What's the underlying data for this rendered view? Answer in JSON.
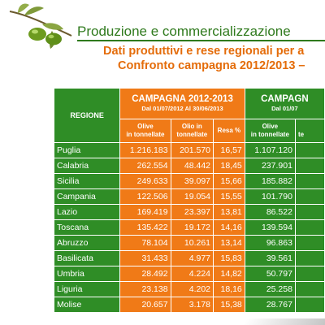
{
  "slide": {
    "title": "Produzione e commercializzazione",
    "subtitle_line1": "Dati produttivi e rese regionali per a",
    "subtitle_line2": "Confronto campagna 2012/2013 –"
  },
  "table": {
    "region_header": "REGIONE",
    "campaign1": {
      "title": "CAMPAGNA 2012-2013",
      "dates": "Dal 01/07/2012 Al 30/06/2013"
    },
    "campaign2": {
      "title": "CAMPAGN",
      "dates": "Dal 01/07"
    },
    "col_headers": {
      "olive_1": "Olive",
      "olive_2": "in tonnellate",
      "olio_1": "Olio in",
      "olio_2": "tonnellate",
      "resa": "Resa %",
      "olive2_1": "Olive",
      "olive2_2": "in tonnellate",
      "olio2_partial": "te"
    },
    "rows": [
      {
        "region": "Puglia",
        "olive": "1.216.183",
        "olio": "201.570",
        "resa": "16,57",
        "olive2": "1.107.120"
      },
      {
        "region": "Calabria",
        "olive": "262.554",
        "olio": "48.442",
        "resa": "18,45",
        "olive2": "237.901"
      },
      {
        "region": "Sicilia",
        "olive": "249.633",
        "olio": "39.097",
        "resa": "15,66",
        "olive2": "185.882"
      },
      {
        "region": "Campania",
        "olive": "122.506",
        "olio": "19.054",
        "resa": "15,55",
        "olive2": "101.790"
      },
      {
        "region": "Lazio",
        "olive": "169.419",
        "olio": "23.397",
        "resa": "13,81",
        "olive2": "86.522"
      },
      {
        "region": "Toscana",
        "olive": "135.422",
        "olio": "19.172",
        "resa": "14,16",
        "olive2": "139.594"
      },
      {
        "region": "Abruzzo",
        "olive": "78.104",
        "olio": "10.261",
        "resa": "13,14",
        "olive2": "96.863"
      },
      {
        "region": "Basilicata",
        "olive": "31.433",
        "olio": "4.977",
        "resa": "15,83",
        "olive2": "39.561"
      },
      {
        "region": "Umbria",
        "olive": "28.492",
        "olio": "4.224",
        "resa": "14,82",
        "olive2": "50.797"
      },
      {
        "region": "Liguria",
        "olive": "23.138",
        "olio": "4.202",
        "resa": "18,16",
        "olive2": "25.258"
      },
      {
        "region": "Molise",
        "olive": "20.657",
        "olio": "3.178",
        "resa": "15,38",
        "olive2": "28.767"
      }
    ]
  },
  "colors": {
    "green": "#2f8d26",
    "orange": "#f07a17",
    "title_green": "#2f7a1d",
    "subtitle_orange": "#e46c0a"
  },
  "icons": {
    "logo": "olive-branch-icon"
  }
}
